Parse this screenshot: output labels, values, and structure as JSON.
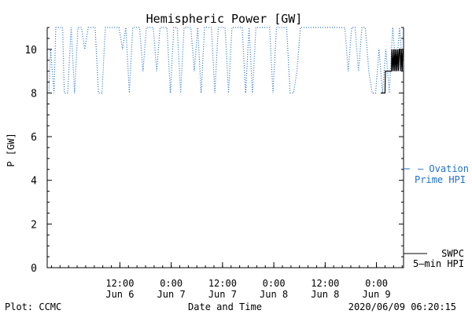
{
  "chart_data": {
    "type": "line",
    "title": "Hemispheric Power [GW]",
    "xlabel": "Date and Time",
    "ylabel": "P [GW]",
    "ylim": [
      0,
      11
    ],
    "xlim": [
      "2020-06-05 19:00",
      "2020-06-09 06:20"
    ],
    "grid": false,
    "y_ticks": [
      "0",
      "2",
      "4",
      "6",
      "8",
      "10"
    ],
    "x_ticks": [
      {
        "time": "2020-06-06 12:00",
        "top": "12:00",
        "bottom": "Jun 6"
      },
      {
        "time": "2020-06-07 00:00",
        "top": "0:00",
        "bottom": "Jun 7"
      },
      {
        "time": "2020-06-07 12:00",
        "top": "12:00",
        "bottom": "Jun 7"
      },
      {
        "time": "2020-06-08 00:00",
        "top": "0:00",
        "bottom": "Jun 8"
      },
      {
        "time": "2020-06-08 12:00",
        "top": "12:00",
        "bottom": "Jun 8"
      },
      {
        "time": "2020-06-09 00:00",
        "top": "0:00",
        "bottom": "Jun 9"
      }
    ],
    "series": [
      {
        "name": "Ovation Prime HPI",
        "color": "#1f6fd0",
        "style": "dotted",
        "x": [
          "2020-06-05 19:24",
          "2020-06-05 19:48",
          "2020-06-05 20:36",
          "2020-06-05 21:00",
          "2020-06-05 21:24",
          "2020-06-05 21:48",
          "2020-06-05 22:12",
          "2020-06-05 22:36",
          "2020-06-05 23:00",
          "2020-06-05 23:48",
          "2020-06-06 00:36",
          "2020-06-06 01:24",
          "2020-06-06 02:12",
          "2020-06-06 03:00",
          "2020-06-06 03:48",
          "2020-06-06 04:36",
          "2020-06-06 05:24",
          "2020-06-06 06:12",
          "2020-06-06 07:00",
          "2020-06-06 07:48",
          "2020-06-06 08:36",
          "2020-06-06 09:24",
          "2020-06-06 10:12",
          "2020-06-06 11:00",
          "2020-06-06 11:48",
          "2020-06-06 12:36",
          "2020-06-06 13:24",
          "2020-06-06 14:12",
          "2020-06-06 15:00",
          "2020-06-06 15:48",
          "2020-06-06 16:36",
          "2020-06-06 17:24",
          "2020-06-06 18:12",
          "2020-06-06 19:00",
          "2020-06-06 19:48",
          "2020-06-06 20:36",
          "2020-06-06 21:24",
          "2020-06-06 22:12",
          "2020-06-06 23:00",
          "2020-06-06 23:48",
          "2020-06-07 00:36",
          "2020-06-07 01:24",
          "2020-06-07 02:12",
          "2020-06-07 03:00",
          "2020-06-07 03:48",
          "2020-06-07 04:36",
          "2020-06-07 05:24",
          "2020-06-07 06:12",
          "2020-06-07 07:00",
          "2020-06-07 07:48",
          "2020-06-07 08:36",
          "2020-06-07 09:24",
          "2020-06-07 10:12",
          "2020-06-07 11:00",
          "2020-06-07 11:48",
          "2020-06-07 12:36",
          "2020-06-07 13:24",
          "2020-06-07 14:12",
          "2020-06-07 15:00",
          "2020-06-07 15:48",
          "2020-06-07 16:36",
          "2020-06-07 17:24",
          "2020-06-07 18:12",
          "2020-06-07 19:00",
          "2020-06-07 19:48",
          "2020-06-07 20:36",
          "2020-06-07 21:24",
          "2020-06-07 22:12",
          "2020-06-07 23:00",
          "2020-06-07 23:48",
          "2020-06-08 00:36",
          "2020-06-08 01:24",
          "2020-06-08 02:12",
          "2020-06-08 03:00",
          "2020-06-08 03:48",
          "2020-06-08 04:36",
          "2020-06-08 05:24",
          "2020-06-08 06:12",
          "2020-06-08 07:00",
          "2020-06-08 07:48",
          "2020-06-08 08:36",
          "2020-06-08 09:24",
          "2020-06-08 10:12",
          "2020-06-08 11:00",
          "2020-06-08 11:48",
          "2020-06-08 12:36",
          "2020-06-08 13:24",
          "2020-06-08 14:12",
          "2020-06-08 15:00",
          "2020-06-08 15:48",
          "2020-06-08 16:36",
          "2020-06-08 17:24",
          "2020-06-08 18:12",
          "2020-06-08 19:00",
          "2020-06-08 19:48",
          "2020-06-08 20:36",
          "2020-06-08 21:24",
          "2020-06-08 22:12",
          "2020-06-08 23:00",
          "2020-06-08 23:48",
          "2020-06-09 00:36",
          "2020-06-09 01:24",
          "2020-06-09 02:12",
          "2020-06-09 03:00",
          "2020-06-09 03:48",
          "2020-06-09 04:36",
          "2020-06-09 05:24",
          "2020-06-09 06:12"
        ],
        "values": [
          8,
          10,
          8,
          11,
          11,
          11,
          11,
          11,
          8,
          8,
          11,
          8,
          11,
          11,
          10,
          11,
          11,
          11,
          8,
          8,
          11,
          11,
          11,
          11,
          11,
          10,
          11,
          8,
          11,
          11,
          11,
          9,
          11,
          11,
          11,
          9,
          11,
          11,
          11,
          8,
          11,
          11,
          8,
          11,
          11,
          11,
          9,
          11,
          8,
          11,
          11,
          11,
          8,
          11,
          11,
          11,
          8,
          11,
          11,
          11,
          11,
          8,
          11,
          8,
          11,
          11,
          11,
          11,
          11,
          8,
          11,
          11,
          11,
          11,
          8,
          8,
          9,
          11,
          11,
          11,
          11,
          11,
          11,
          11,
          11,
          11,
          11,
          11,
          11,
          11,
          11,
          9,
          11,
          11,
          9,
          11,
          11,
          9,
          8,
          8,
          10,
          8,
          10,
          8,
          11,
          9,
          11,
          9
        ]
      },
      {
        "name": "SWPC 5-min HPI",
        "color": "#000000",
        "style": "solid",
        "x": [
          "2020-06-09 01:00",
          "2020-06-09 02:00",
          "2020-06-09 02:05",
          "2020-06-09 03:30",
          "2020-06-09 03:35",
          "2020-06-09 03:50",
          "2020-06-09 04:00",
          "2020-06-09 04:10",
          "2020-06-09 04:20",
          "2020-06-09 04:30",
          "2020-06-09 04:40",
          "2020-06-09 04:50",
          "2020-06-09 05:00",
          "2020-06-09 05:10",
          "2020-06-09 05:20",
          "2020-06-09 05:30",
          "2020-06-09 05:40",
          "2020-06-09 05:50",
          "2020-06-09 06:00",
          "2020-06-09 06:10",
          "2020-06-09 06:20"
        ],
        "values": [
          8,
          8,
          9,
          9,
          10,
          9,
          10,
          9,
          10,
          9,
          10,
          9,
          10,
          9,
          10,
          10,
          9,
          10,
          9,
          10,
          10
        ]
      }
    ],
    "legend": {
      "placement": "right",
      "items": [
        {
          "line1": "– Ovation",
          "line2": "Prime HPI",
          "color": "#1f6fd0"
        },
        {
          "line1": "SWPC",
          "line2": "5–min HPI",
          "color": "#000000"
        }
      ]
    }
  },
  "footer": {
    "left": "Plot: CCMC",
    "center": "Date and Time",
    "right": "2020/06/09 06:20:15"
  }
}
